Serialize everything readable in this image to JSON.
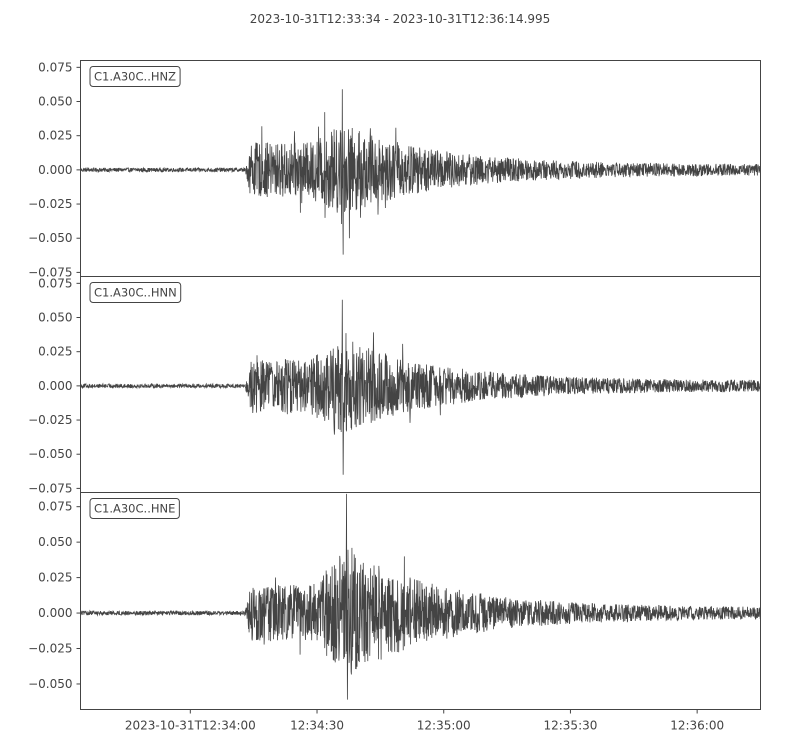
{
  "chart_data": {
    "type": "line",
    "title": "2023-10-31T12:33:34  -  2023-10-31T12:36:14.995",
    "x_ticks": [
      "2023-10-31T12:34:00",
      "12:34:30",
      "12:35:00",
      "12:35:30",
      "12:36:00"
    ],
    "x_tick_seconds": [
      26,
      56,
      86,
      116,
      146
    ],
    "x_range_seconds": [
      0,
      161
    ],
    "series": [
      {
        "name": "C1.A30C..HNZ",
        "ylim": [
          -0.078,
          0.08
        ],
        "yticks": [
          0.075,
          0.05,
          0.025,
          0.0,
          -0.025,
          -0.05,
          -0.075
        ],
        "ytick_labels": [
          "0.075",
          "0.050",
          "0.025",
          "0.000",
          "−0.025",
          "−0.050",
          "−0.075"
        ],
        "pre_event_amplitude": 0.0015,
        "onset_seconds": 39,
        "max_amplitude": 0.059,
        "min_amplitude": -0.062,
        "peak_seconds": 62,
        "tail_amplitude": 0.004
      },
      {
        "name": "C1.A30C..HNN",
        "ylim": [
          -0.078,
          0.08
        ],
        "yticks": [
          0.075,
          0.05,
          0.025,
          0.0,
          -0.025,
          -0.05,
          -0.075
        ],
        "ytick_labels": [
          "0.075",
          "0.050",
          "0.025",
          "0.000",
          "−0.025",
          "−0.050",
          "−0.075"
        ],
        "pre_event_amplitude": 0.0015,
        "onset_seconds": 39,
        "max_amplitude": 0.063,
        "min_amplitude": -0.065,
        "peak_seconds": 62,
        "tail_amplitude": 0.004
      },
      {
        "name": "C1.A30C..HNE",
        "ylim": [
          -0.068,
          0.085
        ],
        "yticks": [
          0.075,
          0.05,
          0.025,
          0.0,
          -0.025,
          -0.05
        ],
        "ytick_labels": [
          "0.075",
          "0.050",
          "0.025",
          "0.000",
          "−0.025",
          "−0.050"
        ],
        "pre_event_amplitude": 0.0015,
        "onset_seconds": 39,
        "max_amplitude": 0.084,
        "min_amplitude": -0.061,
        "peak_seconds": 63,
        "tail_amplitude": 0.004
      }
    ],
    "colors": {
      "trace": "#444444",
      "axes": "#444444",
      "background": "#ffffff"
    },
    "grid": false
  }
}
